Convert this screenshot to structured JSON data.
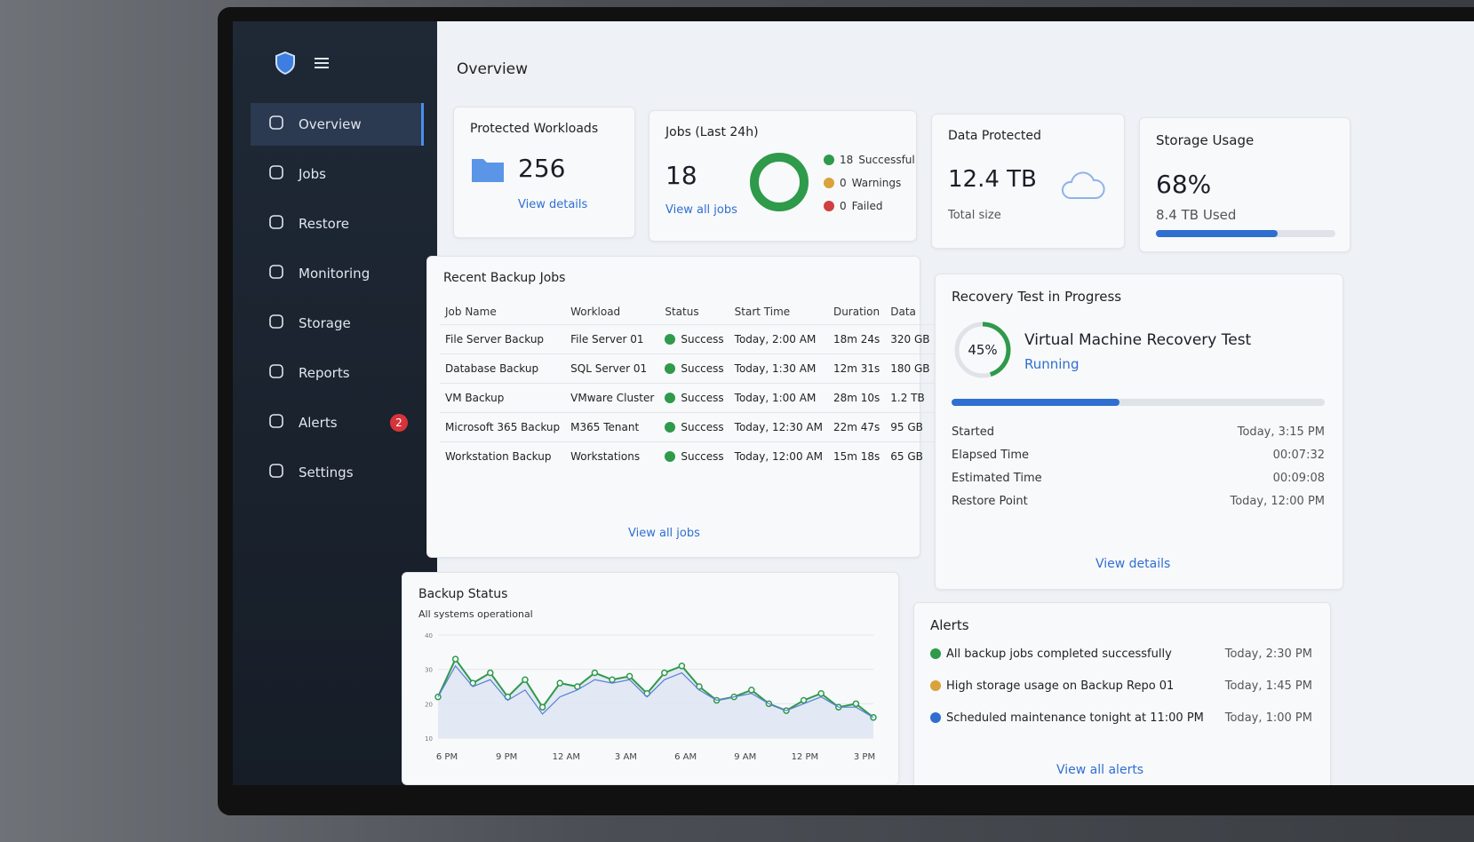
{
  "sidebar": {
    "nav": [
      "Overview",
      "Jobs",
      "Restore",
      "Monitoring",
      "Storage",
      "Reports",
      "Alerts",
      "Settings"
    ],
    "alerts_badge": 2,
    "active": 0
  },
  "header": {
    "title": "Overview"
  },
  "cards": {
    "protected_workloads": {
      "title": "Protected Workloads",
      "value": 256,
      "link": "View details"
    },
    "jobs": {
      "title": "Jobs (Last 24h)",
      "value": 18,
      "link": "View all jobs",
      "legend": [
        {
          "count": 18,
          "label": "Successful",
          "color": "#2e9a4a"
        },
        {
          "count": 0,
          "label": "Warnings",
          "color": "#d9a23a"
        },
        {
          "count": 0,
          "label": "Failed",
          "color": "#d04040"
        }
      ]
    },
    "data_protected": {
      "title": "Data Protected",
      "value": "12.4 TB",
      "caption": "Total size"
    },
    "storage_usage": {
      "title": "Storage Usage",
      "percent": 68,
      "percent_label": "68%",
      "caption": "8.4 TB Used"
    }
  },
  "recent_jobs": {
    "title": "Recent Backup Jobs",
    "columns": [
      "Job Name",
      "Workload",
      "Status",
      "Start Time",
      "Duration",
      "Data"
    ],
    "rows": [
      [
        "File Server Backup",
        "File Server 01",
        "Success",
        "Today, 2:00 AM",
        "18m 24s",
        "320 GB"
      ],
      [
        "Database Backup",
        "SQL Server 01",
        "Success",
        "Today, 1:30 AM",
        "12m 31s",
        "180 GB"
      ],
      [
        "VM Backup",
        "VMware Cluster",
        "Success",
        "Today, 1:00 AM",
        "28m 10s",
        "1.2 TB"
      ],
      [
        "Microsoft 365 Backup",
        "M365 Tenant",
        "Success",
        "Today, 12:30 AM",
        "22m 47s",
        "95 GB"
      ],
      [
        "Workstation Backup",
        "Workstations",
        "Success",
        "Today, 12:00 AM",
        "15m 18s",
        "65 GB"
      ]
    ],
    "link": "View all jobs"
  },
  "recovery_test": {
    "title": "Recovery Test in Progress",
    "percent": 45,
    "percent_label": "45%",
    "name": "Virtual Machine Recovery Test",
    "status": "Running",
    "details": [
      [
        "Started",
        "Today, 3:15 PM"
      ],
      [
        "Elapsed Time",
        "00:07:32"
      ],
      [
        "Estimated Time",
        "00:09:08"
      ],
      [
        "Restore Point",
        "Today, 12:00 PM"
      ]
    ],
    "link": "View details"
  },
  "backup_status": {
    "title": "Backup Status",
    "subtitle": "All systems operational",
    "chart": {
      "type": "line",
      "categories": [
        "6 PM",
        "9 PM",
        "12 AM",
        "3 AM",
        "6 AM",
        "9 AM",
        "12 PM",
        "3 PM"
      ],
      "ylim": [
        10,
        40
      ],
      "yticks": [
        10,
        20,
        30,
        40
      ],
      "series": [
        {
          "color": "#2e9a4a",
          "values": [
            22,
            33,
            26,
            29,
            22,
            27,
            19,
            26,
            25,
            29,
            27,
            28,
            23,
            29,
            31,
            25,
            21,
            22,
            24,
            20,
            18,
            21,
            23,
            19,
            20,
            16
          ]
        },
        {
          "color": "#5b7fd6",
          "values": [
            22,
            31,
            25,
            27,
            21,
            24,
            17,
            22,
            24,
            27,
            26,
            27,
            22,
            27,
            29,
            24,
            21,
            22,
            23,
            20,
            18,
            20,
            22,
            19,
            19,
            16
          ]
        }
      ]
    }
  },
  "alerts": {
    "title": "Alerts",
    "items": [
      {
        "kind": "success",
        "text": "All backup jobs completed successfully",
        "time": "Today, 2:30 PM"
      },
      {
        "kind": "warning",
        "text": "High storage usage on Backup Repo 01",
        "time": "Today, 1:45 PM"
      },
      {
        "kind": "info",
        "text": "Scheduled maintenance tonight at 11:00 PM",
        "time": "Today, 1:00 PM"
      }
    ],
    "link": "View all alerts"
  }
}
